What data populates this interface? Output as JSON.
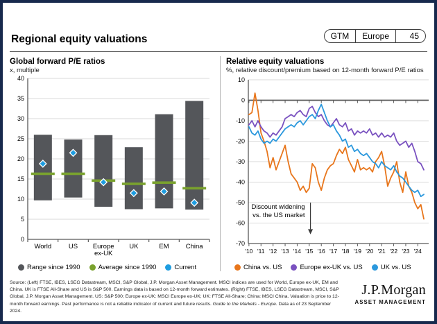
{
  "header": {
    "title": "Regional equity valuations",
    "badge": {
      "gtm": "GTM",
      "region": "Europe",
      "page": "45"
    }
  },
  "left_panel": {
    "title": "Global forward P/E ratios",
    "subtitle": "x, multiple",
    "legend": [
      {
        "label": "Range since 1990",
        "color": "#54565a"
      },
      {
        "label": "Average since 1990",
        "color": "#7aa22e"
      },
      {
        "label": "Current",
        "color": "#1e9de0"
      }
    ]
  },
  "right_panel": {
    "title": "Relative equity valuations",
    "subtitle": "%, relative discount/premium based on 12-month forward P/E ratios",
    "legend": [
      {
        "label": "China vs. US",
        "color": "#e8761c"
      },
      {
        "label": "Europe ex-UK vs. US",
        "color": "#7a52c0"
      },
      {
        "label": "UK vs. US",
        "color": "#2b98dd"
      }
    ]
  },
  "footer": {
    "source_before_italic": "Source: (Left) FTSE, IBES, LSEG Datastream, MSCI, S&P Global, J.P. Morgan Asset Management. MSCI indices are used for World, Europe ex-UK, EM and China. UK is FTSE All-Share and US is S&P 500. Earnings data is based on 12-month forward estimates. (Right) FTSE, IBES, LSEG Datastream, MSCI, S&P Global, J.P. Morgan Asset Management. US: S&P 500; Europe ex-UK: MSCI Europe ex-UK; UK: FTSE All-Share; China: MSCI China. Valuation is price to 12-month forward earnings. Past performance is not a reliable indicator of current and future results. ",
    "source_italic": "Guide to the Markets - Europe.",
    "source_after_italic": " Data as of 23 September 2024.",
    "logo_line1": "J.P.Morgan",
    "logo_line2": "ASSET MANAGEMENT"
  },
  "chart_data": [
    {
      "type": "bar",
      "subtype": "floating-range",
      "title": "Global forward P/E ratios",
      "ylabel": "x, multiple",
      "ylim": [
        0,
        40
      ],
      "ytick_step": 5,
      "grid": true,
      "legend_position": "bottom",
      "categories": [
        "World",
        "US",
        "Europe ex-UK",
        "UK",
        "EM",
        "China"
      ],
      "series": [
        {
          "name": "Range since 1990",
          "color": "#54565a",
          "low": [
            9.7,
            10.4,
            8.1,
            7.5,
            7.7,
            7.4
          ],
          "high": [
            26.0,
            24.8,
            25.9,
            22.9,
            31.1,
            34.4
          ]
        },
        {
          "name": "Average since 1990",
          "color": "#7aa22e",
          "values": [
            16.3,
            16.3,
            14.6,
            13.8,
            14.1,
            12.7
          ]
        },
        {
          "name": "Current",
          "color": "#1e9de0",
          "values": [
            18.8,
            21.5,
            14.2,
            11.5,
            11.9,
            9.1
          ]
        }
      ]
    },
    {
      "type": "line",
      "title": "Relative equity valuations",
      "ylabel": "%, relative discount/premium based on 12-month forward P/E ratios",
      "ylim": [
        -70,
        10
      ],
      "ytick_step": 10,
      "xlim": [
        2009.95,
        2024.9
      ],
      "grid": true,
      "legend_position": "bottom",
      "annotation": [
        "Discount widening",
        "vs. the US market"
      ],
      "annotation_x": 2015.1,
      "xticks": [
        {
          "value": 2010,
          "label": "'10"
        },
        {
          "value": 2011,
          "label": "'11"
        },
        {
          "value": 2012,
          "label": "'12"
        },
        {
          "value": 2013,
          "label": "'13"
        },
        {
          "value": 2014,
          "label": "'14"
        },
        {
          "value": 2015,
          "label": "'15"
        },
        {
          "value": 2016,
          "label": "'16"
        },
        {
          "value": 2017,
          "label": "'17"
        },
        {
          "value": 2018,
          "label": "'18"
        },
        {
          "value": 2019,
          "label": "'19"
        },
        {
          "value": 2020,
          "label": "'20"
        },
        {
          "value": 2021,
          "label": "'21"
        },
        {
          "value": 2022,
          "label": "'22"
        },
        {
          "value": 2023,
          "label": "'23"
        },
        {
          "value": 2024,
          "label": "'24"
        }
      ],
      "x": [
        2010.0,
        2010.25,
        2010.5,
        2010.75,
        2011.0,
        2011.25,
        2011.5,
        2011.75,
        2012.0,
        2012.25,
        2012.5,
        2012.75,
        2013.0,
        2013.25,
        2013.5,
        2013.75,
        2014.0,
        2014.25,
        2014.5,
        2014.75,
        2015.0,
        2015.25,
        2015.5,
        2015.75,
        2016.0,
        2016.25,
        2016.5,
        2016.75,
        2017.0,
        2017.25,
        2017.5,
        2017.75,
        2018.0,
        2018.25,
        2018.5,
        2018.75,
        2019.0,
        2019.25,
        2019.5,
        2019.75,
        2020.0,
        2020.25,
        2020.5,
        2020.75,
        2021.0,
        2021.25,
        2021.5,
        2021.75,
        2022.0,
        2022.25,
        2022.5,
        2022.75,
        2023.0,
        2023.25,
        2023.5,
        2023.75,
        2024.0,
        2024.25,
        2024.5
      ],
      "series": [
        {
          "name": "China vs. US",
          "color": "#e8761c",
          "values": [
            -7,
            -6,
            3.5,
            -5,
            -16,
            -20,
            -25,
            -33,
            -28,
            -34,
            -30,
            -26,
            -22,
            -30,
            -36,
            -38,
            -40,
            -44,
            -42,
            -45,
            -43,
            -31,
            -33,
            -40,
            -44,
            -38,
            -34,
            -32,
            -31,
            -27,
            -24,
            -26,
            -23,
            -29,
            -32,
            -35,
            -29,
            -34,
            -33,
            -34,
            -33,
            -35,
            -30,
            -28,
            -25,
            -32,
            -42,
            -38,
            -35,
            -30,
            -40,
            -45,
            -35,
            -42,
            -45,
            -50,
            -53,
            -51,
            -58
          ]
        },
        {
          "name": "Europe ex-UK vs. US",
          "color": "#7a52c0",
          "values": [
            -12,
            -10,
            -13,
            -10,
            -13,
            -15,
            -16,
            -18,
            -16,
            -17,
            -15,
            -13,
            -9,
            -8,
            -7,
            -8,
            -6,
            -5,
            -7,
            -8,
            -4,
            -3,
            -6,
            -8,
            -7,
            -10,
            -12,
            -13,
            -11,
            -9,
            -12,
            -13,
            -11,
            -15,
            -14,
            -17,
            -15,
            -16,
            -15,
            -16,
            -14,
            -17,
            -16,
            -18,
            -16,
            -18,
            -17,
            -18,
            -16,
            -20,
            -22,
            -21,
            -20,
            -23,
            -21,
            -25,
            -30,
            -31,
            -34
          ]
        },
        {
          "name": "UK vs. US",
          "color": "#2b98dd",
          "values": [
            -13,
            -16,
            -17,
            -15,
            -19,
            -21,
            -20,
            -21,
            -19,
            -20,
            -18,
            -16,
            -14,
            -13,
            -12,
            -13,
            -11,
            -10,
            -12,
            -10,
            -8,
            -7,
            -9,
            -5,
            -2,
            -6,
            -10,
            -13,
            -12,
            -15,
            -17,
            -20,
            -19,
            -23,
            -22,
            -25,
            -24,
            -26,
            -27,
            -26,
            -28,
            -30,
            -31,
            -33,
            -30,
            -32,
            -33,
            -34,
            -32,
            -35,
            -37,
            -38,
            -40,
            -42,
            -44,
            -45,
            -44,
            -47,
            -46
          ]
        }
      ]
    }
  ]
}
